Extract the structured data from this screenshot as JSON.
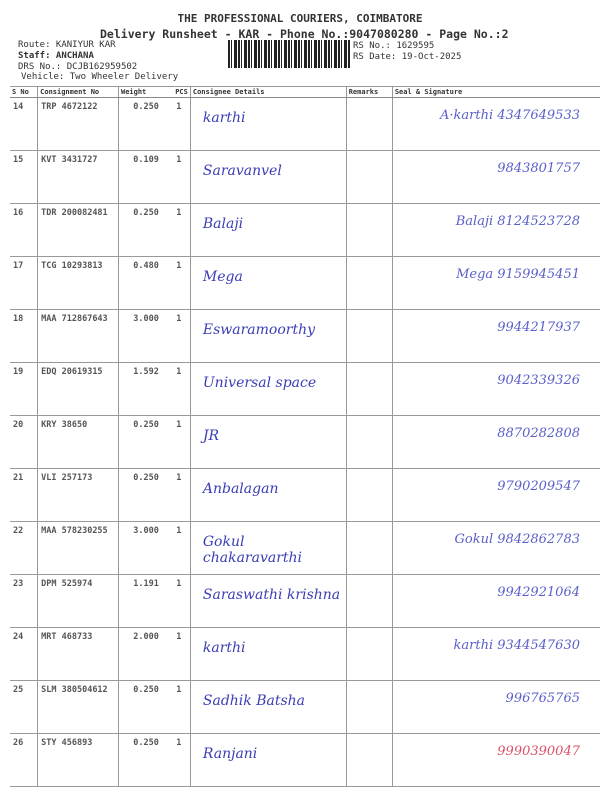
{
  "header": {
    "company": "THE PROFESSIONAL COURIERS, COIMBATORE",
    "subtitle": "Delivery Runsheet - KAR - Phone No.:9047080280 - Page No.:2",
    "route": "Route: KANIYUR KAR",
    "staff": "Staff: ANCHANA",
    "drs_no": "DRS No.: DCJB162959502",
    "vehicle": "Vehicle: Two Wheeler Delivery",
    "rs_no": "RS No.: 1629595",
    "rs_date": "RS Date: 19-Oct-2025"
  },
  "table": {
    "columns": [
      "S No",
      "Consignment No",
      "Weight",
      "PCS",
      "Consignee Details",
      "Remarks",
      "Seal & Signature"
    ],
    "rows": [
      {
        "sno": "14",
        "cno": "TRP 4672122",
        "weight": "0.250",
        "pcs": "1",
        "consignee": "karthi",
        "signature": "A·karthi 4347649533"
      },
      {
        "sno": "15",
        "cno": "KVT 3431727",
        "weight": "0.109",
        "pcs": "1",
        "consignee": "Saravanvel",
        "signature": "9843801757"
      },
      {
        "sno": "16",
        "cno": "TDR 200082481",
        "weight": "0.250",
        "pcs": "1",
        "consignee": "Balaji",
        "signature": "Balaji 8124523728"
      },
      {
        "sno": "17",
        "cno": "TCG 10293813",
        "weight": "0.480",
        "pcs": "1",
        "consignee": "Mega",
        "signature": "Mega 9159945451"
      },
      {
        "sno": "18",
        "cno": "MAA 712867643",
        "weight": "3.000",
        "pcs": "1",
        "consignee": "Eswaramoorthy",
        "signature": "9944217937"
      },
      {
        "sno": "19",
        "cno": "EDQ 20619315",
        "weight": "1.592",
        "pcs": "1",
        "consignee": "Universal space",
        "signature": "9042339326"
      },
      {
        "sno": "20",
        "cno": "KRY 38650",
        "weight": "0.250",
        "pcs": "1",
        "consignee": "JR",
        "signature": "8870282808"
      },
      {
        "sno": "21",
        "cno": "VLI 257173",
        "weight": "0.250",
        "pcs": "1",
        "consignee": "Anbalagan",
        "signature": "9790209547"
      },
      {
        "sno": "22",
        "cno": "MAA 578230255",
        "weight": "3.000",
        "pcs": "1",
        "consignee": "Gokul chakaravarthi",
        "signature": "Gokul 9842862783"
      },
      {
        "sno": "23",
        "cno": "DPM 525974",
        "weight": "1.191",
        "pcs": "1",
        "consignee": "Saraswathi krishna",
        "signature": "9942921064"
      },
      {
        "sno": "24",
        "cno": "MRT 468733",
        "weight": "2.000",
        "pcs": "1",
        "consignee": "karthi",
        "signature": "karthi 9344547630"
      },
      {
        "sno": "25",
        "cno": "SLM 380504612",
        "weight": "0.250",
        "pcs": "1",
        "consignee": "Sadhik Batsha",
        "signature": "996765765"
      },
      {
        "sno": "26",
        "cno": "STY 456893",
        "weight": "0.250",
        "pcs": "1",
        "consignee": "Ranjani",
        "signature": "9990390047"
      }
    ]
  }
}
